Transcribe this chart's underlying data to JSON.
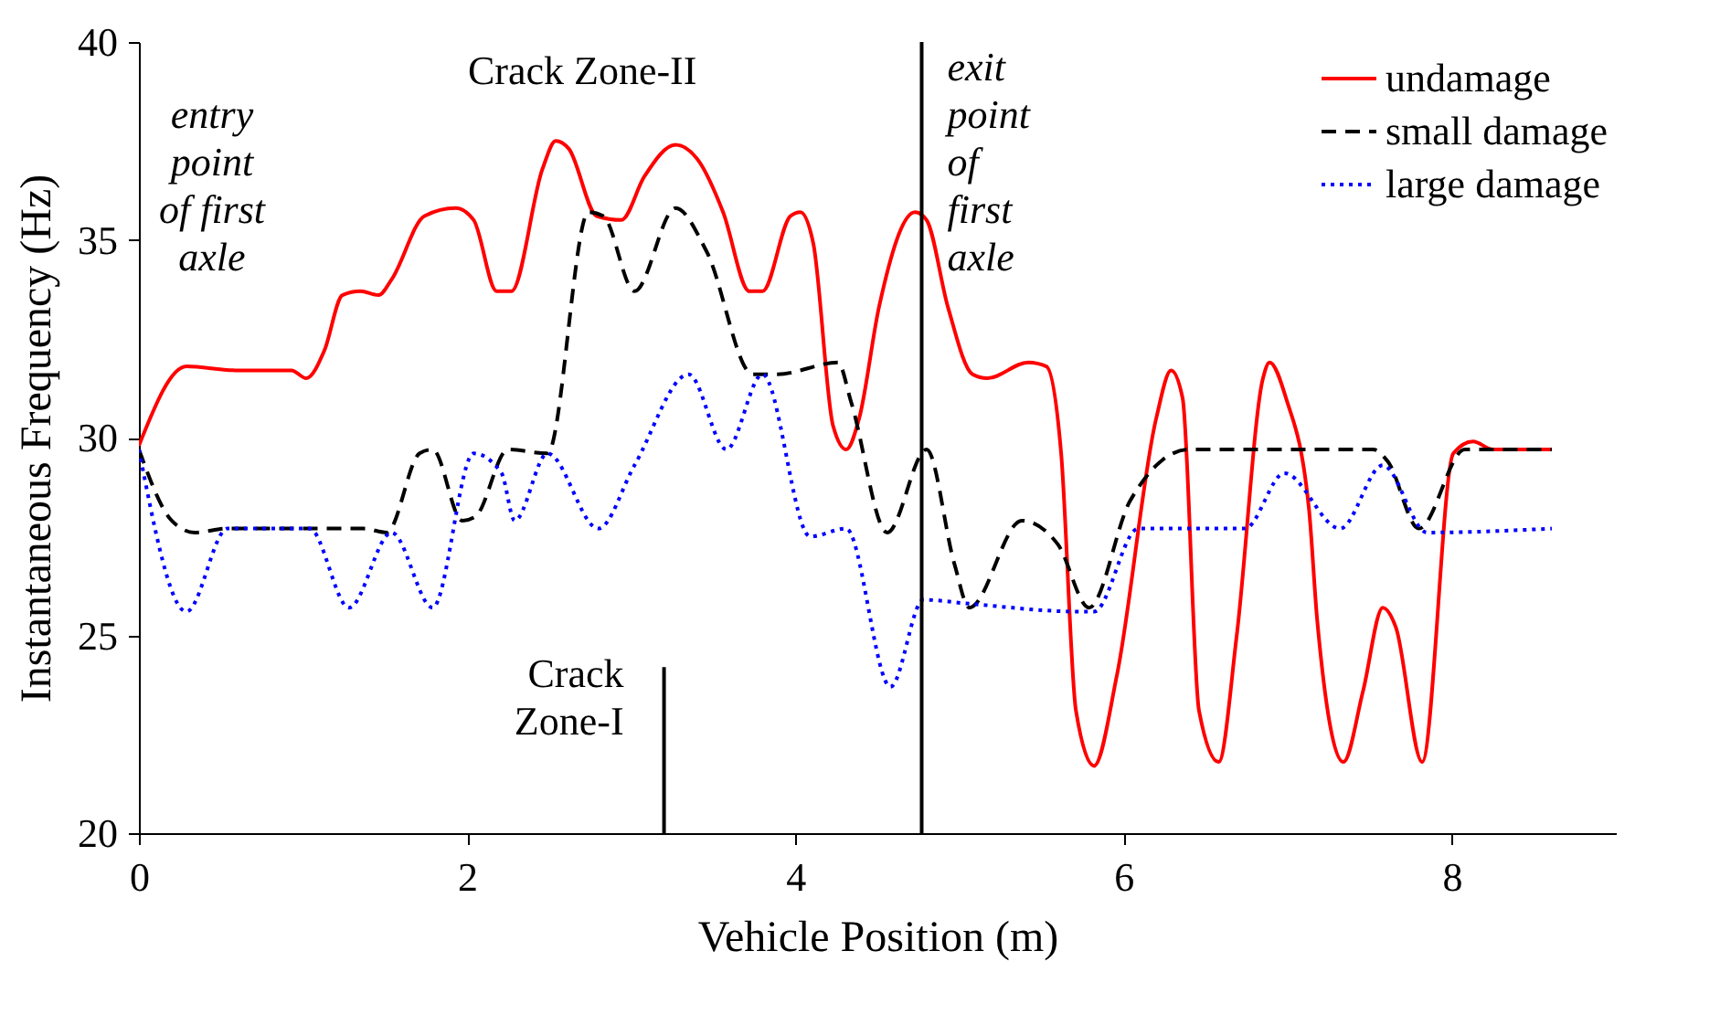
{
  "chart_data": {
    "type": "line",
    "xlabel": "Vehicle Position (m)",
    "ylabel": "Instantaneous Frequency (Hz)",
    "xlim": [
      0,
      9
    ],
    "xticks": [
      {
        "value": 0,
        "label": "0"
      },
      {
        "value": 2,
        "label": "2"
      },
      {
        "value": 4,
        "label": "4"
      },
      {
        "value": 6,
        "label": "6"
      },
      {
        "value": 8,
        "label": "8"
      }
    ],
    "ylim": [
      20,
      40
    ],
    "yticks": [
      20,
      25,
      30,
      35,
      40
    ],
    "grid": false,
    "legend": "top right",
    "marker": "none",
    "series": [
      {
        "name": "undamage",
        "color": "#ff0000",
        "line_style": "solid",
        "x": [
          0,
          0.29,
          0.59,
          0.93,
          1.02,
          1.13,
          1.24,
          1.35,
          1.46,
          1.54,
          1.74,
          1.93,
          2.04,
          2.18,
          2.27,
          2.46,
          2.54,
          2.62,
          2.79,
          2.94,
          3.08,
          3.27,
          3.41,
          3.56,
          3.72,
          3.8,
          3.97,
          4.03,
          4.11,
          4.23,
          4.31,
          4.39,
          4.51,
          4.73,
          4.8,
          4.93,
          5.08,
          5.17,
          5.42,
          5.53,
          5.62,
          5.71,
          5.82,
          5.96,
          6.2,
          6.29,
          6.36,
          6.46,
          6.58,
          6.69,
          6.85,
          6.89,
          6.99,
          7.13,
          7.18,
          7.34,
          7.46,
          7.58,
          7.66,
          7.82,
          8.01,
          8.13,
          8.25,
          8.61
        ],
        "values": [
          29.8,
          31.8,
          31.7,
          31.7,
          31.5,
          32.2,
          33.6,
          33.7,
          33.6,
          34.0,
          35.6,
          35.8,
          35.5,
          33.7,
          33.7,
          36.8,
          37.5,
          37.3,
          35.6,
          35.5,
          36.6,
          37.4,
          37.0,
          35.7,
          33.7,
          33.7,
          35.6,
          35.7,
          34.9,
          30.3,
          29.7,
          30.5,
          33.3,
          35.7,
          35.5,
          33.3,
          31.6,
          31.5,
          31.9,
          31.8,
          29.6,
          23.1,
          21.7,
          24.0,
          30.5,
          31.7,
          31.0,
          23.1,
          21.8,
          25.0,
          31.5,
          31.9,
          31.0,
          28.2,
          25.4,
          21.8,
          23.6,
          25.7,
          25.2,
          21.8,
          29.6,
          29.9,
          29.7,
          29.7
        ]
      },
      {
        "name": "small damage",
        "color": "#000000",
        "line_style": "dashed",
        "x": [
          0,
          0.2,
          0.34,
          0.54,
          1.37,
          1.51,
          1.71,
          1.79,
          1.97,
          2.05,
          2.25,
          2.49,
          2.74,
          2.83,
          3.02,
          3.27,
          3.46,
          3.74,
          3.89,
          4.26,
          4.34,
          4.56,
          4.8,
          4.97,
          5.06,
          5.38,
          5.6,
          5.79,
          6.04,
          6.4,
          7.52,
          7.61,
          7.8,
          8.08,
          8.61
        ],
        "values": [
          29.7,
          27.9,
          27.6,
          27.7,
          27.7,
          27.6,
          29.6,
          29.7,
          27.9,
          28.0,
          29.7,
          29.6,
          35.7,
          35.6,
          33.7,
          35.8,
          34.7,
          31.6,
          31.6,
          31.9,
          30.9,
          27.6,
          29.7,
          26.8,
          25.7,
          27.9,
          27.3,
          25.7,
          28.4,
          29.7,
          29.7,
          29.4,
          27.7,
          29.7,
          29.7
        ]
      },
      {
        "name": "large damage",
        "color": "#0000ff",
        "line_style": "dotted",
        "x": [
          0,
          0.29,
          0.54,
          1.04,
          1.28,
          1.54,
          1.79,
          2.04,
          2.21,
          2.29,
          2.49,
          2.8,
          3.02,
          3.35,
          3.58,
          3.8,
          4.09,
          4.31,
          4.58,
          4.78,
          5.06,
          5.73,
          5.82,
          6.09,
          6.74,
          6.98,
          7.32,
          7.58,
          7.85,
          8.61
        ],
        "values": [
          29.7,
          25.6,
          27.7,
          27.7,
          25.7,
          27.6,
          25.7,
          29.6,
          29.1,
          27.9,
          29.6,
          27.7,
          29.3,
          31.6,
          29.7,
          31.6,
          27.5,
          27.7,
          23.7,
          25.9,
          25.8,
          25.6,
          25.6,
          27.7,
          27.7,
          29.1,
          27.7,
          29.3,
          27.6,
          27.7
        ]
      }
    ],
    "ref_lines": [
      {
        "axis": "x",
        "value": 4.77,
        "label": "exit point of first axle",
        "color": "#000000"
      },
      {
        "axis": "x",
        "value": 3.2,
        "label": "Crack Zone-I",
        "color": "#000000"
      }
    ],
    "annotations": [
      "entry point of first axle",
      "Crack Zone-II"
    ]
  }
}
